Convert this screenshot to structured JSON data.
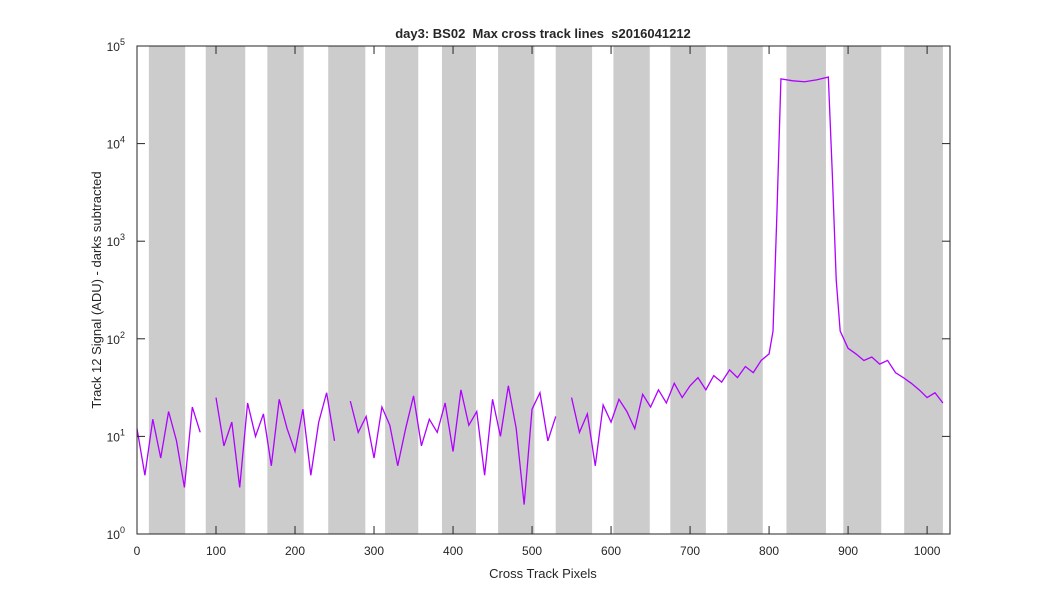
{
  "chart_data": {
    "type": "line",
    "title": "day3: BS02  Max cross track lines  s2016041212",
    "x_label": "Cross Track Pixels",
    "y_label": "Track 12 Signal (ADU) - darks subtracted",
    "log_y": true,
    "xlim": [
      0,
      1029
    ],
    "ylim": [
      1,
      100000
    ],
    "xticks": [
      0,
      100,
      200,
      300,
      400,
      500,
      600,
      700,
      800,
      900,
      1000
    ],
    "yticks": [
      {
        "value": 1,
        "label": "10",
        "exponent": "0"
      },
      {
        "value": 10,
        "label": "10",
        "exponent": "1"
      },
      {
        "value": 100,
        "label": "10",
        "exponent": "2"
      },
      {
        "value": 1000,
        "label": "10",
        "exponent": "3"
      },
      {
        "value": 10000,
        "label": "10",
        "exponent": "4"
      },
      {
        "value": 100000,
        "label": "10",
        "exponent": "5"
      }
    ],
    "shade_color": "#cccccc",
    "shaded_regions": [
      [
        15,
        61
      ],
      [
        87,
        137
      ],
      [
        165,
        211
      ],
      [
        242,
        289
      ],
      [
        314,
        356
      ],
      [
        386,
        429
      ],
      [
        457,
        503
      ],
      [
        530,
        576
      ],
      [
        603,
        649
      ],
      [
        675,
        720
      ],
      [
        747,
        792
      ],
      [
        822,
        872
      ],
      [
        894,
        942
      ],
      [
        971,
        1020
      ]
    ],
    "x": [
      0,
      10,
      20,
      30,
      40,
      50,
      60,
      70,
      80,
      90,
      100,
      110,
      120,
      130,
      140,
      150,
      160,
      170,
      180,
      190,
      200,
      210,
      220,
      230,
      240,
      250,
      260,
      270,
      280,
      290,
      300,
      310,
      320,
      330,
      340,
      350,
      360,
      370,
      380,
      390,
      400,
      410,
      420,
      430,
      440,
      450,
      460,
      470,
      480,
      490,
      500,
      510,
      520,
      530,
      540,
      550,
      560,
      570,
      580,
      590,
      600,
      610,
      620,
      630,
      640,
      650,
      660,
      670,
      680,
      690,
      700,
      710,
      720,
      730,
      740,
      750,
      760,
      770,
      780,
      790,
      800,
      805,
      810,
      815,
      830,
      845,
      860,
      875,
      880,
      885,
      890,
      900,
      910,
      920,
      930,
      940,
      950,
      960,
      970,
      980,
      990,
      1000,
      1010,
      1020
    ],
    "series": [
      {
        "color": "#b000ff",
        "values": [
          12,
          4,
          15,
          6,
          18,
          9,
          3,
          20,
          11,
          null,
          25,
          8,
          14,
          3,
          22,
          10,
          17,
          5,
          24,
          12,
          7,
          19,
          4,
          14,
          28,
          9,
          null,
          23,
          11,
          16,
          6,
          20,
          13,
          5,
          12,
          26,
          8,
          15,
          11,
          22,
          7,
          30,
          13,
          18,
          4,
          24,
          10,
          33,
          12,
          2,
          19,
          28,
          9,
          16,
          null,
          25,
          11,
          17,
          5,
          21,
          14,
          24,
          18,
          12,
          27,
          20,
          30,
          22,
          35,
          25,
          33,
          40,
          30,
          42,
          36,
          48,
          40,
          52,
          45,
          60,
          70,
          120,
          2000,
          46000,
          44000,
          43000,
          45000,
          48000,
          5000,
          400,
          120,
          80,
          70,
          60,
          65,
          55,
          60,
          45,
          40,
          35,
          30,
          25,
          28,
          22
        ]
      }
    ]
  }
}
